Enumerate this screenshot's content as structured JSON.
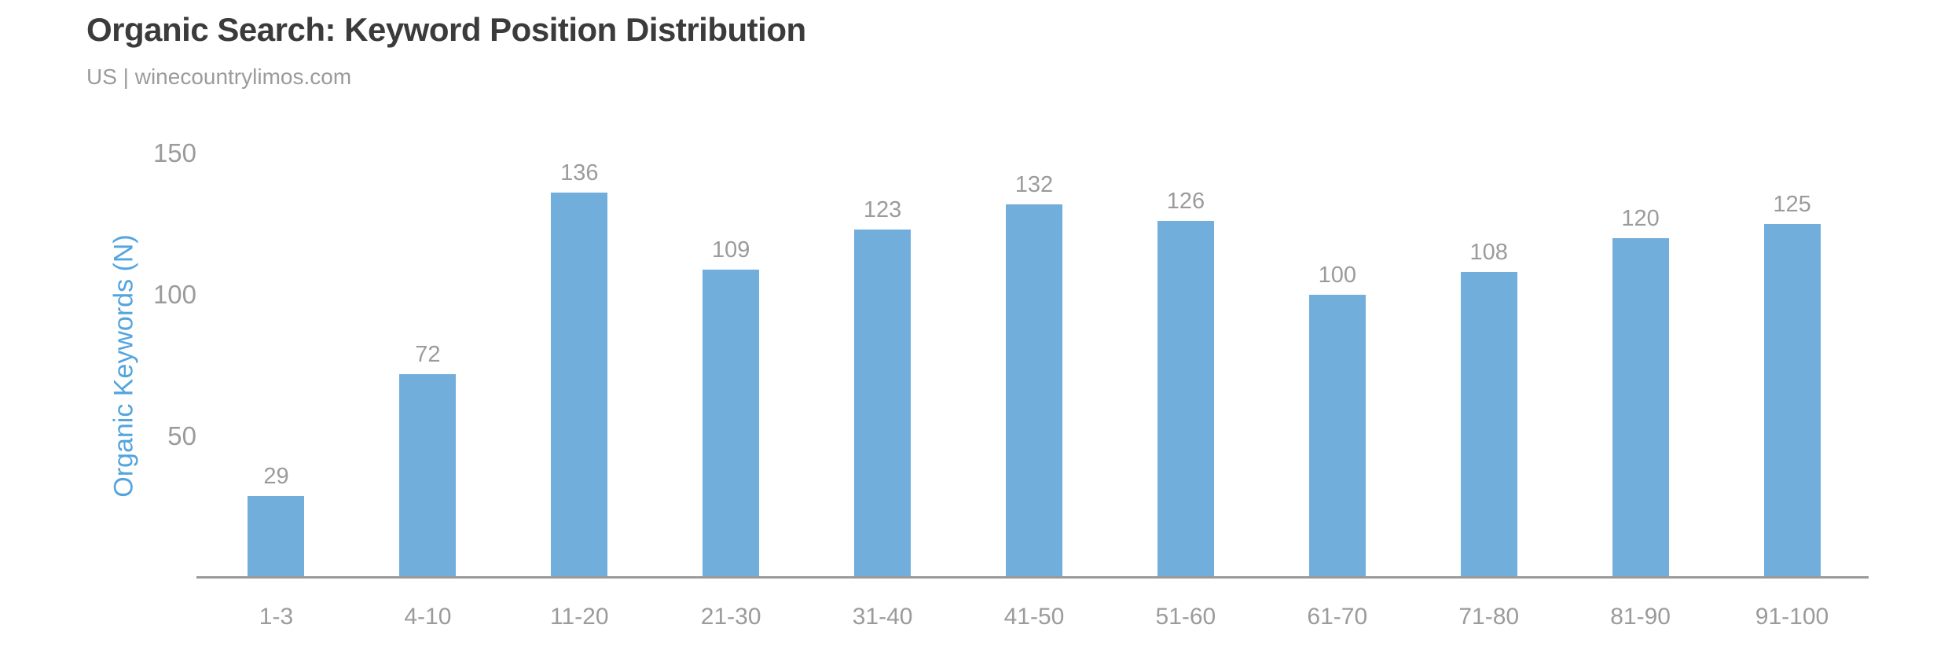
{
  "header": {
    "title": "Organic Search: Keyword Position Distribution",
    "subtitle": "US | winecountrylimos.com"
  },
  "chart_data": {
    "type": "bar",
    "title": "Organic Search: Keyword Position Distribution",
    "subtitle": "US | winecountrylimos.com",
    "categories": [
      "1-3",
      "4-10",
      "11-20",
      "21-30",
      "31-40",
      "41-50",
      "51-60",
      "61-70",
      "71-80",
      "81-90",
      "91-100"
    ],
    "values": [
      29,
      72,
      136,
      109,
      123,
      132,
      126,
      100,
      108,
      120,
      125
    ],
    "xlabel": "",
    "ylabel": "Organic Keywords (N)",
    "ylim": [
      0,
      150
    ],
    "y_ticks": [
      50,
      100,
      150
    ],
    "grid": false,
    "legend_position": "none",
    "colors": {
      "bar": "#72AEDC",
      "ylabel_text": "#54A4DE",
      "tick_text": "#9B9B9B",
      "value_label_text": "#9B9B9B",
      "title_text": "#3B3B3B",
      "axis_line": "#9A9A9A",
      "background": "#FFFFFF"
    }
  }
}
